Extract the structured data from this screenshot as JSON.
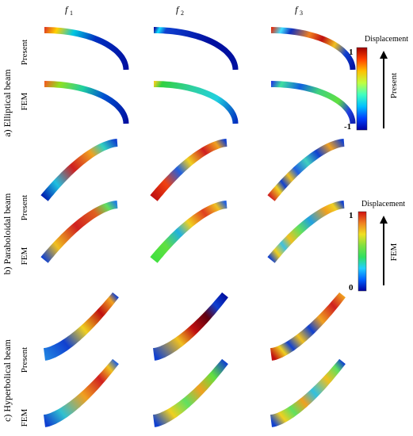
{
  "columns": [
    {
      "label": "f",
      "sub": "1"
    },
    {
      "label": "f",
      "sub": "2"
    },
    {
      "label": "f",
      "sub": "3"
    }
  ],
  "groups": [
    {
      "label": "a) Elliptical beam",
      "rows": [
        "Present",
        "FEM"
      ],
      "shape": "ellipse",
      "modes": [
        {
          "present": [
            [
              0,
              "#e04020"
            ],
            [
              0.12,
              "#ffd000"
            ],
            [
              0.3,
              "#00c8e0"
            ],
            [
              0.55,
              "#0030c0"
            ],
            [
              1,
              "#0010a0"
            ]
          ],
          "fem": [
            [
              0,
              "#f06020"
            ],
            [
              0.15,
              "#90e020"
            ],
            [
              0.4,
              "#20d0a0"
            ],
            [
              0.65,
              "#0050d0"
            ],
            [
              1,
              "#0010a0"
            ]
          ]
        },
        {
          "present": [
            [
              0,
              "#1010a0"
            ],
            [
              0.05,
              "#10e0ff"
            ],
            [
              0.12,
              "#1040d0"
            ],
            [
              0.6,
              "#0010a0"
            ],
            [
              1,
              "#0010a0"
            ]
          ],
          "fem": [
            [
              0,
              "#f0d020"
            ],
            [
              0.08,
              "#30d040"
            ],
            [
              0.4,
              "#30d0a0"
            ],
            [
              0.7,
              "#20d0e0"
            ],
            [
              1,
              "#0030c0"
            ]
          ]
        },
        {
          "present": [
            [
              0,
              "#e03010"
            ],
            [
              0.1,
              "#40e0ff"
            ],
            [
              0.2,
              "#1030c0"
            ],
            [
              0.4,
              "#f08020"
            ],
            [
              0.55,
              "#c01010"
            ],
            [
              0.7,
              "#f0c020"
            ],
            [
              0.85,
              "#1040d0"
            ],
            [
              1,
              "#0010a0"
            ]
          ],
          "fem": [
            [
              0,
              "#2040e0"
            ],
            [
              0.1,
              "#40e0a0"
            ],
            [
              0.3,
              "#1060e0"
            ],
            [
              0.5,
              "#40d080"
            ],
            [
              0.75,
              "#60e040"
            ],
            [
              0.9,
              "#2040e0"
            ],
            [
              1,
              "#1020b0"
            ]
          ]
        }
      ]
    },
    {
      "label": "b) Paraboloidal beam",
      "rows": [
        "Present",
        "FEM"
      ],
      "shape": "parabola",
      "modes": [
        {
          "present": [
            [
              0,
              "#0020b0"
            ],
            [
              0.2,
              "#20c0e0"
            ],
            [
              0.45,
              "#d02020"
            ],
            [
              0.7,
              "#f0a020"
            ],
            [
              0.85,
              "#30d0c0"
            ],
            [
              1,
              "#1040d0"
            ]
          ],
          "fem": [
            [
              0,
              "#1040d0"
            ],
            [
              0.2,
              "#f0c020"
            ],
            [
              0.5,
              "#d02020"
            ],
            [
              0.75,
              "#e06020"
            ],
            [
              0.9,
              "#60e060"
            ],
            [
              1,
              "#2080e0"
            ]
          ]
        },
        {
          "present": [
            [
              0,
              "#c01010"
            ],
            [
              0.2,
              "#f04010"
            ],
            [
              0.4,
              "#2060e0"
            ],
            [
              0.55,
              "#f0d020"
            ],
            [
              0.75,
              "#d02020"
            ],
            [
              0.9,
              "#f0a020"
            ],
            [
              1,
              "#1040d0"
            ]
          ],
          "fem": [
            [
              0,
              "#40e040"
            ],
            [
              0.2,
              "#60e040"
            ],
            [
              0.4,
              "#20b0e0"
            ],
            [
              0.55,
              "#f0d020"
            ],
            [
              0.75,
              "#e04020"
            ],
            [
              0.9,
              "#f0c020"
            ],
            [
              1,
              "#2060e0"
            ]
          ]
        },
        {
          "present": [
            [
              0,
              "#d02020"
            ],
            [
              0.12,
              "#f0d020"
            ],
            [
              0.2,
              "#1040d0"
            ],
            [
              0.3,
              "#f0c020"
            ],
            [
              0.4,
              "#2060e0"
            ],
            [
              0.55,
              "#40d0c0"
            ],
            [
              0.7,
              "#1040d0"
            ],
            [
              0.85,
              "#f0a020"
            ],
            [
              1,
              "#1040d0"
            ]
          ],
          "fem": [
            [
              0,
              "#1040d0"
            ],
            [
              0.1,
              "#f0d020"
            ],
            [
              0.2,
              "#40c0e0"
            ],
            [
              0.3,
              "#f0c020"
            ],
            [
              0.45,
              "#60e060"
            ],
            [
              0.6,
              "#20a0e0"
            ],
            [
              0.8,
              "#f0a020"
            ],
            [
              0.9,
              "#f0d020"
            ],
            [
              1,
              "#1040d0"
            ]
          ]
        }
      ]
    },
    {
      "label": "c) Hyperbolical beam",
      "rows": [
        "Present",
        "FEM"
      ],
      "shape": "hyperbola",
      "modes": [
        {
          "present": [
            [
              0,
              "#2080e0"
            ],
            [
              0.25,
              "#1040d0"
            ],
            [
              0.5,
              "#f0d020"
            ],
            [
              0.75,
              "#c01010"
            ],
            [
              0.92,
              "#f0a020"
            ],
            [
              1,
              "#1040d0"
            ]
          ],
          "fem": [
            [
              0,
              "#1040d0"
            ],
            [
              0.2,
              "#30c0d0"
            ],
            [
              0.5,
              "#f0a020"
            ],
            [
              0.75,
              "#d02020"
            ],
            [
              0.9,
              "#f0c020"
            ],
            [
              1,
              "#2060e0"
            ]
          ]
        },
        {
          "present": [
            [
              0,
              "#1040d0"
            ],
            [
              0.3,
              "#f0c020"
            ],
            [
              0.5,
              "#c01010"
            ],
            [
              0.7,
              "#600010"
            ],
            [
              0.85,
              "#1040d0"
            ],
            [
              1,
              "#0010a0"
            ]
          ],
          "fem": [
            [
              0,
              "#1040d0"
            ],
            [
              0.2,
              "#f0d020"
            ],
            [
              0.4,
              "#60e060"
            ],
            [
              0.6,
              "#f0a020"
            ],
            [
              0.8,
              "#60e040"
            ],
            [
              1,
              "#1040d0"
            ]
          ]
        },
        {
          "present": [
            [
              0,
              "#c01010"
            ],
            [
              0.12,
              "#f0d020"
            ],
            [
              0.22,
              "#1040d0"
            ],
            [
              0.35,
              "#f0c020"
            ],
            [
              0.5,
              "#1040d0"
            ],
            [
              0.65,
              "#f0a020"
            ],
            [
              0.85,
              "#d02020"
            ],
            [
              1,
              "#f0a020"
            ]
          ],
          "fem": [
            [
              0,
              "#1040d0"
            ],
            [
              0.12,
              "#f0d020"
            ],
            [
              0.25,
              "#60e060"
            ],
            [
              0.4,
              "#f0a020"
            ],
            [
              0.55,
              "#30c0e0"
            ],
            [
              0.75,
              "#f0c020"
            ],
            [
              0.9,
              "#60e060"
            ],
            [
              1,
              "#1040d0"
            ]
          ]
        }
      ]
    }
  ],
  "legends": [
    {
      "title": "Displacement",
      "max": "1",
      "min": "-1",
      "arrow_label": "Present",
      "colors": [
        "#0000a0",
        "#0040ff",
        "#00c0ff",
        "#40ffc0",
        "#c0ff40",
        "#ffc000",
        "#ff4000",
        "#a00000"
      ]
    },
    {
      "title": "Displacement",
      "max": "1",
      "min": "0",
      "arrow_label": "FEM",
      "colors": [
        "#0000a0",
        "#0060ff",
        "#20d0ff",
        "#30e060",
        "#80e040",
        "#f0e020",
        "#f08020",
        "#d01010"
      ]
    }
  ]
}
